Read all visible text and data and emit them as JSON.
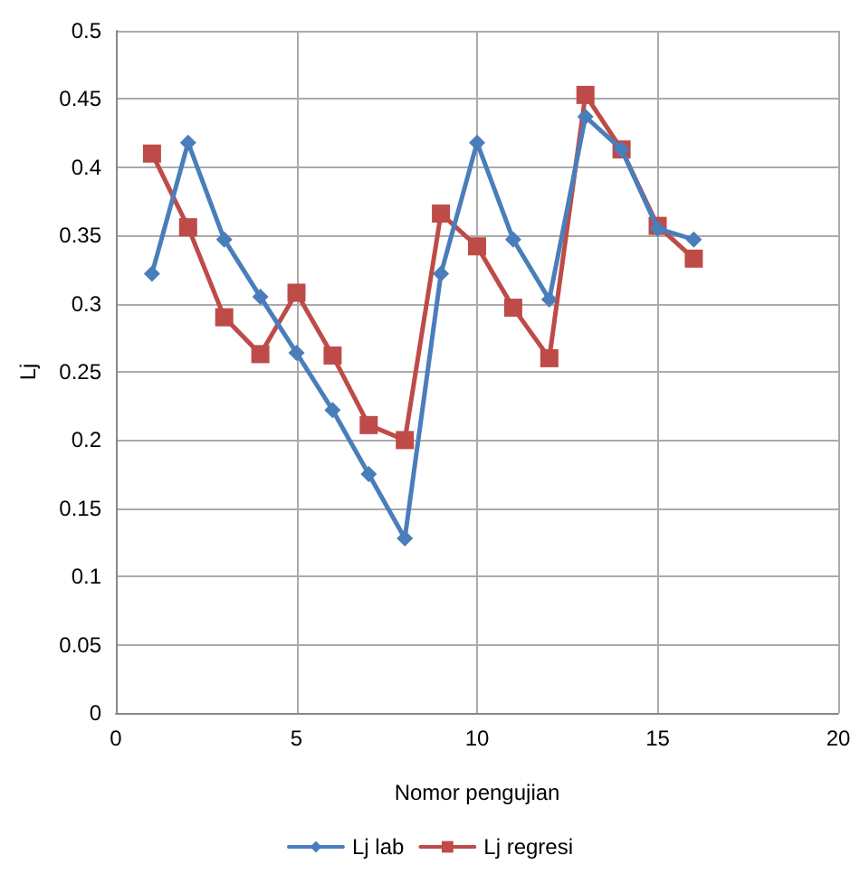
{
  "chart_data": {
    "type": "line",
    "xlabel": "Nomor pengujian",
    "ylabel": "Lj",
    "x": [
      1,
      2,
      3,
      4,
      5,
      6,
      7,
      8,
      9,
      10,
      11,
      12,
      13,
      14,
      15,
      16
    ],
    "series": [
      {
        "name": "Lj lab",
        "color": "#4a7ebb",
        "marker": "diamond",
        "values": [
          0.322,
          0.418,
          0.347,
          0.305,
          0.264,
          0.222,
          0.175,
          0.128,
          0.322,
          0.418,
          0.347,
          0.303,
          0.437,
          0.413,
          0.355,
          0.347
        ]
      },
      {
        "name": "Lj regresi",
        "color": "#be4b48",
        "marker": "square",
        "values": [
          0.41,
          0.356,
          0.29,
          0.263,
          0.308,
          0.262,
          0.211,
          0.2,
          0.366,
          0.342,
          0.297,
          0.26,
          0.453,
          0.413,
          0.357,
          0.333
        ]
      }
    ],
    "xlim": [
      0,
      20
    ],
    "xticks": [
      0,
      5,
      10,
      15,
      20
    ],
    "ylim": [
      0,
      0.5
    ],
    "yticks": [
      0,
      0.05,
      0.1,
      0.15,
      0.2,
      0.25,
      0.3,
      0.35,
      0.4,
      0.45,
      0.5
    ],
    "grid": true,
    "legend": "bottom",
    "line_style": "solid"
  }
}
